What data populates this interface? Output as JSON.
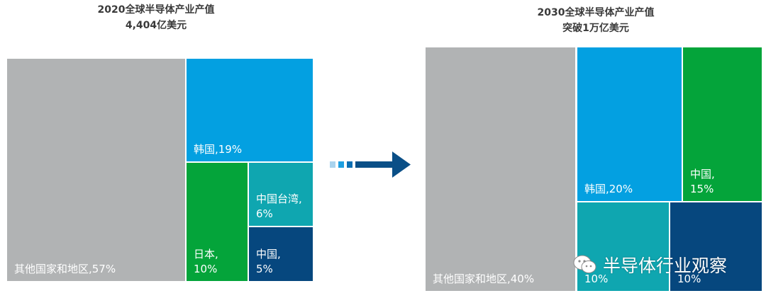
{
  "chart_data": [
    {
      "type": "treemap",
      "title": "2020全球半导体产业产值",
      "subtitle": "4,404亿美元",
      "tiles": [
        {
          "label": "其他国家和地区,57%",
          "value": 57,
          "color": "#b1b3b4"
        },
        {
          "label": "韩国,19%",
          "value": 19,
          "color": "#03a0e1"
        },
        {
          "label": "日本,\n10%",
          "value": 10,
          "color": "#04a43a"
        },
        {
          "label": "中国台湾,\n6%",
          "value": 6,
          "color": "#0fa6b0"
        },
        {
          "label": "中国,\n5%",
          "value": 5,
          "color": "#06477e"
        }
      ]
    },
    {
      "type": "treemap",
      "title": "2030全球半导体产业产值",
      "subtitle": "突破1万亿美元",
      "tiles": [
        {
          "label": "其他国家和地区,40%",
          "value": 40,
          "color": "#b1b3b4"
        },
        {
          "label": "韩国,20%",
          "value": 20,
          "color": "#03a0e1"
        },
        {
          "label": "中国,\n15%",
          "value": 15,
          "color": "#04a43a"
        },
        {
          "label": "10%",
          "value": 10,
          "color": "#0fa6b0"
        },
        {
          "label": "10%",
          "value": 10,
          "color": "#06477e"
        }
      ]
    }
  ],
  "watermark": {
    "text": "半导体行业观察",
    "icon": "wechat-icon"
  }
}
